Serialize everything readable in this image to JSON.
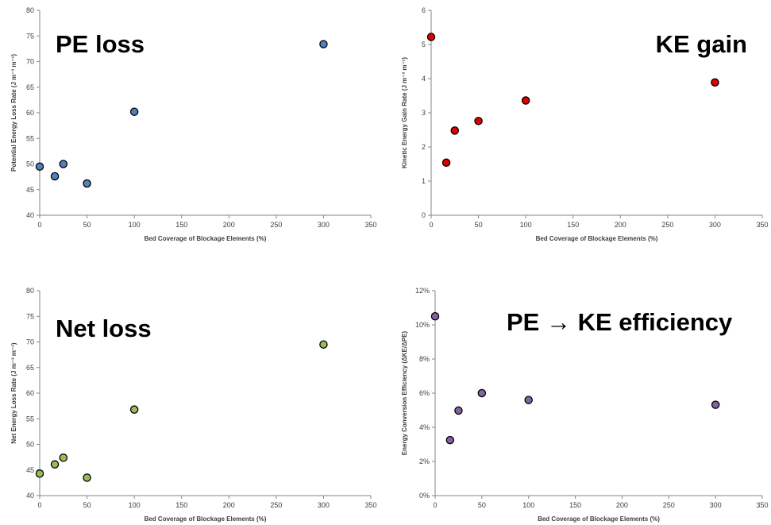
{
  "chart_data": [
    {
      "type": "scatter",
      "title": "PE loss",
      "xlabel": "Bed Coverage of Blockage Elements (%)",
      "ylabel": "Potential Energy Loss Rate (J m⁻³ m⁻¹)",
      "xlim": [
        0,
        350
      ],
      "ylim": [
        40,
        80
      ],
      "x_ticks": [
        "0",
        "50",
        "100",
        "150",
        "200",
        "250",
        "300",
        "350"
      ],
      "y_ticks": [
        "40",
        "45",
        "50",
        "55",
        "60",
        "65",
        "70",
        "75",
        "80"
      ],
      "grid": false,
      "marker_color": "#4F81BD",
      "series": [
        {
          "x": [
            0,
            16,
            25,
            50,
            100,
            300
          ],
          "y": [
            49.5,
            47.6,
            50.0,
            46.2,
            60.2,
            73.4
          ]
        }
      ]
    },
    {
      "type": "scatter",
      "title": "KE gain",
      "xlabel": "Bed Coverage of Blockage Elements (%)",
      "ylabel": "Kinetic Energy Gain Rate (J m⁻³ m⁻¹)",
      "xlim": [
        0,
        350
      ],
      "ylim": [
        0,
        6
      ],
      "x_ticks": [
        "0",
        "50",
        "100",
        "150",
        "200",
        "250",
        "300",
        "350"
      ],
      "y_ticks": [
        "0",
        "1",
        "2",
        "3",
        "4",
        "5",
        "6"
      ],
      "grid": false,
      "marker_color": "#E00000",
      "series": [
        {
          "x": [
            0,
            16,
            25,
            50,
            100,
            300
          ],
          "y": [
            5.22,
            1.54,
            2.48,
            2.76,
            3.36,
            3.89
          ]
        }
      ]
    },
    {
      "type": "scatter",
      "title": "Net loss",
      "xlabel": "Bed Coverage of Blockage Elements (%)",
      "ylabel": "Net Energy Loss Rate (J m⁻³ m⁻¹)",
      "xlim": [
        0,
        350
      ],
      "ylim": [
        40,
        80
      ],
      "x_ticks": [
        "0",
        "50",
        "100",
        "150",
        "200",
        "250",
        "300",
        "350"
      ],
      "y_ticks": [
        "40",
        "45",
        "50",
        "55",
        "60",
        "65",
        "70",
        "75",
        "80"
      ],
      "grid": false,
      "marker_color": "#9BBB59",
      "series": [
        {
          "x": [
            0,
            16,
            25,
            50,
            100,
            300
          ],
          "y": [
            44.3,
            46.1,
            47.4,
            43.5,
            56.8,
            69.5
          ]
        }
      ]
    },
    {
      "type": "scatter",
      "title": "PE → KE efficiency",
      "xlabel": "Bed Coverage of Blockage Elements (%)",
      "ylabel": "Energy Conversion Efficiency (ΔKE/ΔPE)",
      "xlim": [
        0,
        350
      ],
      "ylim": [
        0,
        12
      ],
      "x_ticks": [
        "0",
        "50",
        "100",
        "150",
        "200",
        "250",
        "300",
        "350"
      ],
      "y_ticks": [
        "0%",
        "2%",
        "4%",
        "6%",
        "8%",
        "10%",
        "12%"
      ],
      "grid": false,
      "marker_color": "#8064A2",
      "series": [
        {
          "x": [
            0,
            16,
            25,
            50,
            100,
            300
          ],
          "y": [
            10.5,
            3.25,
            4.98,
            6.0,
            5.6,
            5.32
          ]
        }
      ]
    }
  ]
}
